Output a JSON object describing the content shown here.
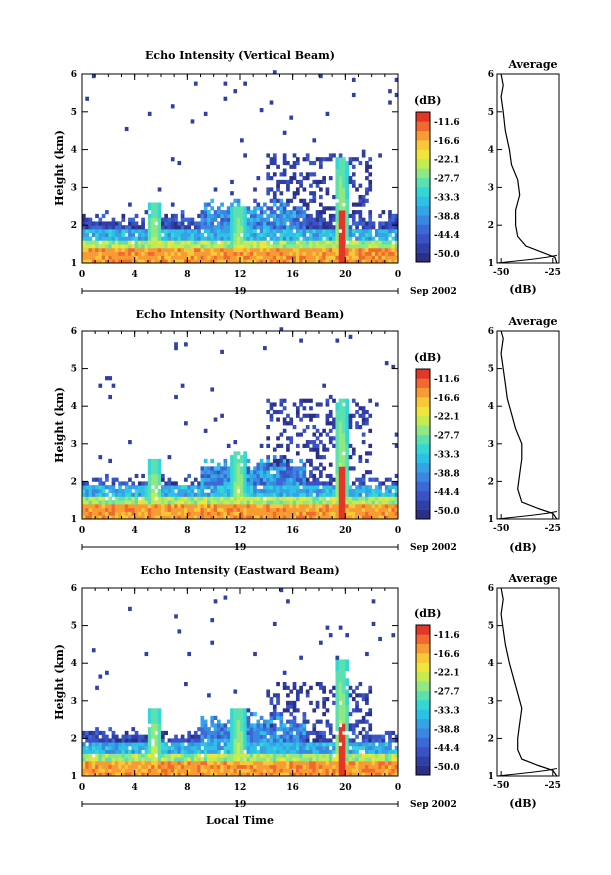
{
  "colorbar_levels": [
    "-11.6",
    "-16.6",
    "-22.1",
    "-27.7",
    "-33.3",
    "-38.8",
    "-44.4",
    "-50.0"
  ],
  "colorbar_unit": "(dB)",
  "colormap": [
    "#2b2f86",
    "#2f3fa5",
    "#3a52c4",
    "#3b69d6",
    "#3a86e0",
    "#35a3e6",
    "#2fc0e8",
    "#35d6d6",
    "#5be0b0",
    "#8fe882",
    "#c2ec52",
    "#eee63a",
    "#f8c83a",
    "#f79c34",
    "#f06a30",
    "#e23628"
  ],
  "date_label": "Sep 2002",
  "xlabel": "Local Time",
  "ylabel": "Height (km)",
  "avg_title": "Average",
  "avg_xlabel": "(dB)",
  "chart_data": [
    {
      "type": "heatmap",
      "title": "Echo Intensity (Vertical Beam)",
      "xlabel": "",
      "ylabel": "Height (km)",
      "xlim": [
        0,
        24
      ],
      "ylim": [
        1,
        6
      ],
      "x_ticks": [
        "0",
        "4",
        "8",
        "12",
        "16",
        "20",
        "0"
      ],
      "y_ticks": [
        "1",
        "2",
        "3",
        "4",
        "5",
        "6"
      ],
      "day_label": "19",
      "date_label": "Sep 2002",
      "colorbar": {
        "unit": "(dB)",
        "levels": [
          "-11.6",
          "-16.6",
          "-22.1",
          "-27.7",
          "-33.3",
          "-38.8",
          "-44.4",
          "-50.0"
        ]
      },
      "features": {
        "bg_top": 2.2,
        "spikes": [
          {
            "t": 5.5,
            "top": 2.6
          },
          {
            "t": 11.9,
            "top": 2.5
          },
          {
            "t": 19.7,
            "top": 3.8
          }
        ],
        "core_t": 19.7,
        "patch_top": 3.9
      },
      "average": {
        "title": "Average",
        "xlabel": "(dB)",
        "x_ticks": [
          "-50",
          "-25"
        ],
        "xlim": [
          -52,
          -22
        ],
        "ylim": [
          1,
          6
        ],
        "profile": [
          [
            -23,
            1.0
          ],
          [
            -24,
            1.15
          ],
          [
            -30,
            1.28
          ],
          [
            -38,
            1.45
          ],
          [
            -42,
            1.7
          ],
          [
            -43,
            2.0
          ],
          [
            -43,
            2.4
          ],
          [
            -41,
            2.8
          ],
          [
            -42,
            3.2
          ],
          [
            -45,
            3.6
          ],
          [
            -46,
            4.0
          ],
          [
            -48,
            4.5
          ],
          [
            -49,
            5.0
          ],
          [
            -50,
            5.4
          ],
          [
            -49,
            5.7
          ],
          [
            -50,
            6.0
          ]
        ],
        "noise": [
          [
            -52,
            1.0
          ],
          [
            -45,
            1.04
          ],
          [
            -35,
            1.1
          ],
          [
            -28,
            1.15
          ],
          [
            -23,
            1.2
          ]
        ]
      }
    },
    {
      "type": "heatmap",
      "title": "Echo Intensity (Northward Beam)",
      "xlabel": "",
      "ylabel": "Height (km)",
      "xlim": [
        0,
        24
      ],
      "ylim": [
        1,
        6
      ],
      "x_ticks": [
        "0",
        "4",
        "8",
        "12",
        "16",
        "20",
        "0"
      ],
      "y_ticks": [
        "1",
        "2",
        "3",
        "4",
        "5",
        "6"
      ],
      "day_label": "19",
      "date_label": "Sep 2002",
      "colorbar": {
        "unit": "(dB)",
        "levels": [
          "-11.6",
          "-16.6",
          "-22.1",
          "-27.7",
          "-33.3",
          "-38.8",
          "-44.4",
          "-50.0"
        ]
      },
      "features": {
        "bg_top": 2.0,
        "spikes": [
          {
            "t": 5.5,
            "top": 2.6
          },
          {
            "t": 11.9,
            "top": 2.8
          },
          {
            "t": 19.7,
            "top": 4.2
          }
        ],
        "core_t": 19.7,
        "patch_top": 4.2
      },
      "average": {
        "title": "Average",
        "xlabel": "(dB)",
        "x_ticks": [
          "-50",
          "-25"
        ],
        "xlim": [
          -52,
          -22
        ],
        "ylim": [
          1,
          6
        ],
        "profile": [
          [
            -23,
            1.0
          ],
          [
            -25,
            1.15
          ],
          [
            -32,
            1.28
          ],
          [
            -40,
            1.45
          ],
          [
            -42,
            1.8
          ],
          [
            -41,
            2.2
          ],
          [
            -40,
            2.6
          ],
          [
            -40,
            3.0
          ],
          [
            -43,
            3.4
          ],
          [
            -45,
            3.8
          ],
          [
            -47,
            4.2
          ],
          [
            -48,
            4.6
          ],
          [
            -49,
            5.0
          ],
          [
            -50,
            5.4
          ],
          [
            -49,
            5.8
          ],
          [
            -50,
            6.0
          ]
        ],
        "noise": [
          [
            -52,
            1.0
          ],
          [
            -45,
            1.04
          ],
          [
            -35,
            1.1
          ],
          [
            -28,
            1.15
          ],
          [
            -23,
            1.2
          ]
        ]
      }
    },
    {
      "type": "heatmap",
      "title": "Echo Intensity (Eastward Beam)",
      "xlabel": "Local Time",
      "ylabel": "Height (km)",
      "xlim": [
        0,
        24
      ],
      "ylim": [
        1,
        6
      ],
      "x_ticks": [
        "0",
        "4",
        "8",
        "12",
        "16",
        "20",
        "0"
      ],
      "y_ticks": [
        "1",
        "2",
        "3",
        "4",
        "5",
        "6"
      ],
      "day_label": "19",
      "date_label": "Sep 2002",
      "colorbar": {
        "unit": "(dB)",
        "levels": [
          "-11.6",
          "-16.6",
          "-22.1",
          "-27.7",
          "-33.3",
          "-38.8",
          "-44.4",
          "-50.0"
        ]
      },
      "features": {
        "bg_top": 2.1,
        "spikes": [
          {
            "t": 5.5,
            "top": 2.8
          },
          {
            "t": 11.9,
            "top": 2.8
          },
          {
            "t": 19.7,
            "top": 4.1
          }
        ],
        "core_t": 19.7,
        "patch_top": 3.5
      },
      "average": {
        "title": "Average",
        "xlabel": "(dB)",
        "x_ticks": [
          "-50",
          "-25"
        ],
        "xlim": [
          -52,
          -22
        ],
        "ylim": [
          1,
          6
        ],
        "profile": [
          [
            -23,
            1.0
          ],
          [
            -25,
            1.15
          ],
          [
            -32,
            1.28
          ],
          [
            -40,
            1.45
          ],
          [
            -42,
            1.7
          ],
          [
            -42,
            2.0
          ],
          [
            -41,
            2.4
          ],
          [
            -40,
            2.8
          ],
          [
            -42,
            3.2
          ],
          [
            -44,
            3.6
          ],
          [
            -46,
            4.0
          ],
          [
            -48,
            4.5
          ],
          [
            -49,
            4.9
          ],
          [
            -50,
            5.3
          ],
          [
            -49,
            5.7
          ],
          [
            -50,
            6.0
          ]
        ],
        "noise": [
          [
            -52,
            1.0
          ],
          [
            -45,
            1.04
          ],
          [
            -35,
            1.1
          ],
          [
            -28,
            1.15
          ],
          [
            -23,
            1.2
          ]
        ]
      }
    }
  ]
}
